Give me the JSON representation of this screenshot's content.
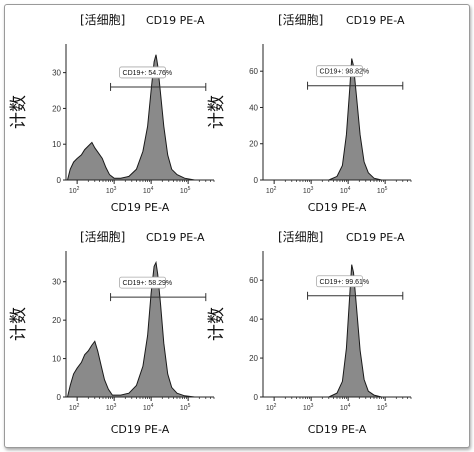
{
  "chart_data": [
    {
      "type": "area",
      "panel": "top-left",
      "gate_title": "[活细胞]",
      "channel_title": "CD19 PE-A",
      "xlabel": "CD19 PE-A",
      "ylabel": "计数",
      "x_scale": "log",
      "xlim": [
        50,
        500000
      ],
      "x_ticks": [
        "10^2",
        "10^3",
        "10^4",
        "10^5"
      ],
      "ylim": [
        0,
        38
      ],
      "y_ticks": [
        0,
        10,
        20,
        30
      ],
      "gate_text": "CD19+: 54.76%",
      "gate_range": [
        800,
        300000
      ],
      "gate_y": 26,
      "histogram": [
        {
          "x": 55,
          "y": 0
        },
        {
          "x": 65,
          "y": 3
        },
        {
          "x": 80,
          "y": 5
        },
        {
          "x": 100,
          "y": 6
        },
        {
          "x": 130,
          "y": 7
        },
        {
          "x": 160,
          "y": 8.5
        },
        {
          "x": 200,
          "y": 9.5
        },
        {
          "x": 250,
          "y": 10.5
        },
        {
          "x": 300,
          "y": 9
        },
        {
          "x": 380,
          "y": 7.5
        },
        {
          "x": 480,
          "y": 6
        },
        {
          "x": 600,
          "y": 3.5
        },
        {
          "x": 750,
          "y": 1.5
        },
        {
          "x": 1000,
          "y": 0.5
        },
        {
          "x": 1500,
          "y": 0.5
        },
        {
          "x": 2500,
          "y": 1
        },
        {
          "x": 4000,
          "y": 3
        },
        {
          "x": 6000,
          "y": 8
        },
        {
          "x": 8000,
          "y": 15
        },
        {
          "x": 10000,
          "y": 25
        },
        {
          "x": 12000,
          "y": 33
        },
        {
          "x": 13500,
          "y": 35
        },
        {
          "x": 15000,
          "y": 32
        },
        {
          "x": 18000,
          "y": 24
        },
        {
          "x": 22000,
          "y": 15
        },
        {
          "x": 28000,
          "y": 7
        },
        {
          "x": 36000,
          "y": 3
        },
        {
          "x": 50000,
          "y": 1.5
        },
        {
          "x": 80000,
          "y": 0.5
        },
        {
          "x": 150000,
          "y": 0
        }
      ]
    },
    {
      "type": "area",
      "panel": "top-right",
      "gate_title": "[活细胞]",
      "channel_title": "CD19 PE-A",
      "xlabel": "CD19 PE-A",
      "ylabel": "计数",
      "x_scale": "log",
      "xlim": [
        50,
        500000
      ],
      "x_ticks": [
        "10^2",
        "10^3",
        "10^4",
        "10^5"
      ],
      "ylim": [
        0,
        75
      ],
      "y_ticks": [
        0,
        20,
        40,
        60
      ],
      "gate_text": "CD19+: 98.82%",
      "gate_range": [
        800,
        300000
      ],
      "gate_y": 52,
      "histogram": [
        {
          "x": 3000,
          "y": 0
        },
        {
          "x": 5000,
          "y": 2
        },
        {
          "x": 7000,
          "y": 8
        },
        {
          "x": 9000,
          "y": 25
        },
        {
          "x": 11000,
          "y": 50
        },
        {
          "x": 12500,
          "y": 67
        },
        {
          "x": 14000,
          "y": 63
        },
        {
          "x": 17000,
          "y": 45
        },
        {
          "x": 21000,
          "y": 25
        },
        {
          "x": 27000,
          "y": 10
        },
        {
          "x": 35000,
          "y": 4
        },
        {
          "x": 50000,
          "y": 1
        },
        {
          "x": 80000,
          "y": 0
        }
      ]
    },
    {
      "type": "area",
      "panel": "bottom-left",
      "gate_title": "[活细胞]",
      "channel_title": "CD19 PE-A",
      "xlabel": "CD19 PE-A",
      "ylabel": "计数",
      "x_scale": "log",
      "xlim": [
        50,
        500000
      ],
      "x_ticks": [
        "10^2",
        "10^3",
        "10^4",
        "10^5"
      ],
      "ylim": [
        0,
        38
      ],
      "y_ticks": [
        0,
        10,
        20,
        30
      ],
      "gate_text": "CD19+: 58.29%",
      "gate_range": [
        800,
        300000
      ],
      "gate_y": 26,
      "histogram": [
        {
          "x": 55,
          "y": 0
        },
        {
          "x": 65,
          "y": 3
        },
        {
          "x": 80,
          "y": 6
        },
        {
          "x": 100,
          "y": 7.5
        },
        {
          "x": 130,
          "y": 9
        },
        {
          "x": 160,
          "y": 11
        },
        {
          "x": 200,
          "y": 12
        },
        {
          "x": 250,
          "y": 13.5
        },
        {
          "x": 300,
          "y": 14.5
        },
        {
          "x": 360,
          "y": 12
        },
        {
          "x": 450,
          "y": 8
        },
        {
          "x": 550,
          "y": 4.5
        },
        {
          "x": 700,
          "y": 2
        },
        {
          "x": 900,
          "y": 0.5
        },
        {
          "x": 1500,
          "y": 0.5
        },
        {
          "x": 2500,
          "y": 1
        },
        {
          "x": 4000,
          "y": 3
        },
        {
          "x": 6000,
          "y": 8
        },
        {
          "x": 8000,
          "y": 16
        },
        {
          "x": 10000,
          "y": 27
        },
        {
          "x": 12000,
          "y": 34
        },
        {
          "x": 13500,
          "y": 35
        },
        {
          "x": 15000,
          "y": 32
        },
        {
          "x": 18000,
          "y": 24
        },
        {
          "x": 22000,
          "y": 14
        },
        {
          "x": 28000,
          "y": 6
        },
        {
          "x": 36000,
          "y": 2.5
        },
        {
          "x": 50000,
          "y": 1
        },
        {
          "x": 80000,
          "y": 0.3
        },
        {
          "x": 150000,
          "y": 0
        }
      ]
    },
    {
      "type": "area",
      "panel": "bottom-right",
      "gate_title": "[活细胞]",
      "channel_title": "CD19 PE-A",
      "xlabel": "CD19 PE-A",
      "ylabel": "计数",
      "x_scale": "log",
      "xlim": [
        50,
        500000
      ],
      "x_ticks": [
        "10^2",
        "10^3",
        "10^4",
        "10^5"
      ],
      "ylim": [
        0,
        75
      ],
      "y_ticks": [
        0,
        20,
        40,
        60
      ],
      "gate_text": "CD19+: 99.61%",
      "gate_range": [
        800,
        300000
      ],
      "gate_y": 52,
      "histogram": [
        {
          "x": 3000,
          "y": 0
        },
        {
          "x": 5000,
          "y": 2
        },
        {
          "x": 7000,
          "y": 8
        },
        {
          "x": 9000,
          "y": 25
        },
        {
          "x": 11000,
          "y": 52
        },
        {
          "x": 12500,
          "y": 68
        },
        {
          "x": 14000,
          "y": 64
        },
        {
          "x": 17000,
          "y": 45
        },
        {
          "x": 21000,
          "y": 24
        },
        {
          "x": 27000,
          "y": 9
        },
        {
          "x": 35000,
          "y": 3
        },
        {
          "x": 50000,
          "y": 1
        },
        {
          "x": 80000,
          "y": 0
        }
      ]
    }
  ],
  "style": {
    "fill_color": "#8a8a8a",
    "stroke_color": "#1a1a1a",
    "gate_color": "#333333",
    "axis_color": "#222222"
  }
}
